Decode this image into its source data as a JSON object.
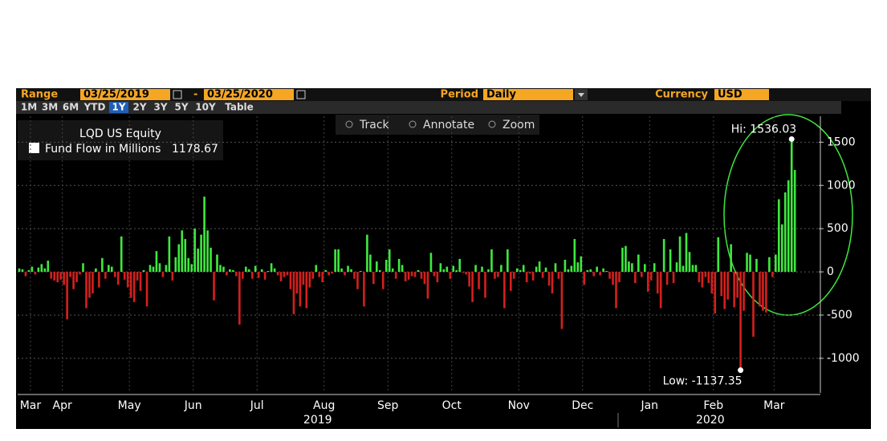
{
  "toolbar": {
    "range_label": "Range",
    "start": "03/25/2019",
    "dash": "-",
    "end": "03/25/2020",
    "period_label": "Period",
    "period": "Daily",
    "currency_label": "Currency",
    "currency": "USD",
    "buttons": [
      "1M",
      "3M",
      "6M",
      "YTD",
      "1Y",
      "2Y",
      "3Y",
      "5Y",
      "10Y",
      "Table"
    ],
    "active_button": 4,
    "tools": [
      "Track",
      "Annotate",
      "Zoom"
    ]
  },
  "chart_data": {
    "type": "bar",
    "title": "LQD US Equity",
    "series": [
      {
        "name": "Fund Flow in Millions",
        "values": [
          40,
          30,
          -50,
          20,
          60,
          -30,
          50,
          90,
          40,
          130,
          -80,
          -100,
          -120,
          -90,
          -150,
          -550,
          -60,
          -200,
          -120,
          -30,
          100,
          -420,
          -300,
          -250,
          40,
          -180,
          160,
          -80,
          80,
          60,
          -60,
          -150,
          410,
          -90,
          -180,
          -300,
          -350,
          -100,
          -220,
          20,
          -400,
          80,
          60,
          240,
          100,
          -60,
          80,
          410,
          -100,
          170,
          320,
          480,
          380,
          160,
          90,
          500,
          270,
          430,
          870,
          480,
          280,
          -330,
          200,
          80,
          60,
          -40,
          30,
          20,
          -50,
          -610,
          -80,
          60,
          30,
          -80,
          70,
          -70,
          30,
          -90,
          10,
          100,
          40,
          -40,
          -110,
          -60,
          -40,
          -200,
          -490,
          -250,
          -400,
          -150,
          -420,
          -180,
          -80,
          80,
          -60,
          -120,
          20,
          -40,
          -20,
          260,
          260,
          40,
          -40,
          70,
          30,
          -80,
          -200,
          10,
          -400,
          430,
          200,
          -140,
          120,
          20,
          -200,
          140,
          260,
          40,
          -80,
          150,
          80,
          -110,
          -90,
          -50,
          -60,
          20,
          -80,
          -140,
          -310,
          220,
          -50,
          -120,
          100,
          30,
          60,
          -80,
          70,
          20,
          150,
          -10,
          -30,
          -170,
          -350,
          80,
          -200,
          60,
          -300,
          30,
          260,
          -80,
          -60,
          80,
          -420,
          260,
          -220,
          -80,
          40,
          20,
          80,
          -120,
          -20,
          -100,
          60,
          120,
          -70,
          50,
          -160,
          -250,
          100,
          -80,
          -660,
          140,
          30,
          70,
          380,
          110,
          180,
          -150,
          20,
          30,
          -50,
          60,
          -40,
          40,
          10,
          -80,
          -150,
          -420,
          -120,
          280,
          300,
          120,
          100,
          -130,
          200,
          -60,
          90,
          -230,
          -100,
          100,
          -250,
          -420,
          380,
          -150,
          260,
          -130,
          110,
          410,
          70,
          450,
          230,
          80,
          80,
          -120,
          -180,
          -60,
          -130,
          -250,
          -480,
          400,
          -280,
          -430,
          -320,
          320,
          -410,
          -300,
          -1137.35,
          -450,
          220,
          200,
          -750,
          150,
          -400,
          -450,
          -470,
          170,
          -60,
          200,
          840,
          550,
          920,
          1060,
          1536.03,
          1178.67
        ]
      }
    ],
    "positive_color": "#3ee83e",
    "negative_color": "#d3201d",
    "annotations": {
      "high": "Hi: 1536.03",
      "low": "Low: -1137.35"
    },
    "xlim": [
      0,
      251
    ],
    "xticks": [
      {
        "value": 4,
        "label": "Mar"
      },
      {
        "value": 14,
        "label": "Apr"
      },
      {
        "value": 35,
        "label": "May"
      },
      {
        "value": 55,
        "label": "Jun"
      },
      {
        "value": 75,
        "label": "Jul"
      },
      {
        "value": 96,
        "label": "Aug"
      },
      {
        "value": 116,
        "label": "Sep"
      },
      {
        "value": 136,
        "label": "Oct"
      },
      {
        "value": 157,
        "label": "Nov"
      },
      {
        "value": 177,
        "label": "Dec"
      },
      {
        "value": 198,
        "label": "Jan"
      },
      {
        "value": 218,
        "label": "Feb"
      },
      {
        "value": 237,
        "label": "Mar"
      }
    ],
    "year_labels": [
      {
        "value": 94,
        "label": "2019"
      },
      {
        "value": 217,
        "label": "2020"
      }
    ],
    "ylim": [
      -1400,
      1800
    ],
    "yticks": [
      -1000,
      -500,
      0,
      500,
      1000,
      1500
    ],
    "grid": true
  }
}
